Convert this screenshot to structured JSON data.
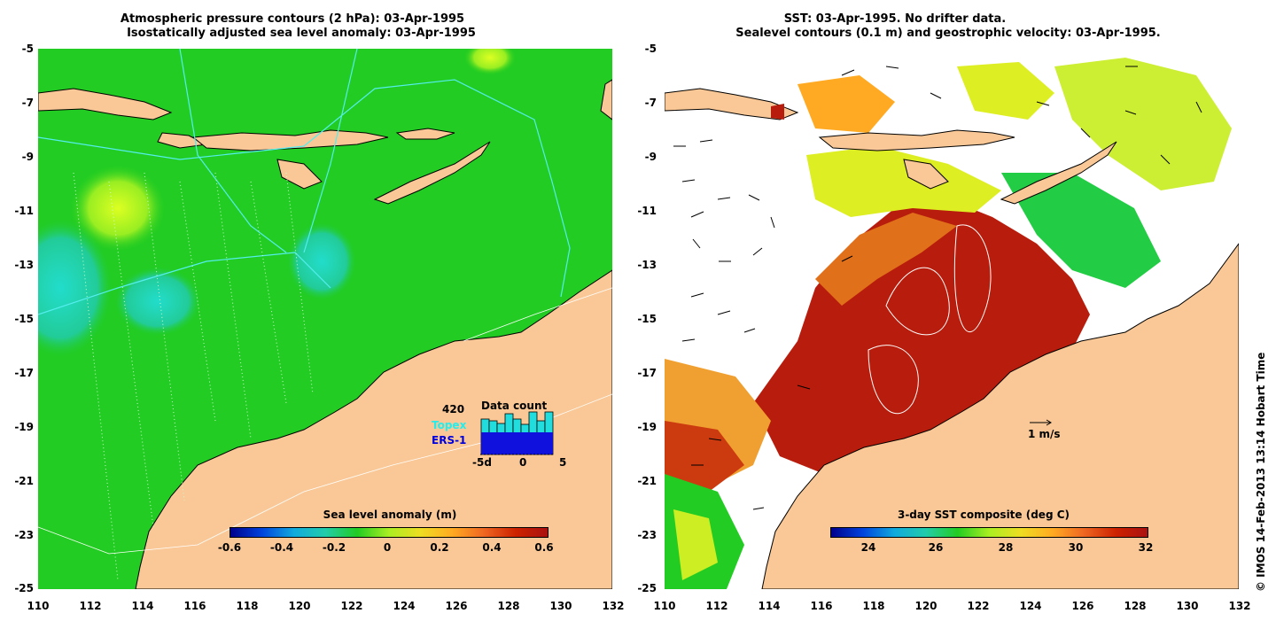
{
  "left": {
    "title_line1": "Atmospheric pressure contours (2 hPa): 03-Apr-1995",
    "title_line2": "Isostatically adjusted sea level anomaly: 03-Apr-1995",
    "colorbar_title": "Sea level anomaly (m)",
    "colorbar_ticks": [
      "-0.6",
      "-0.4",
      "-0.2",
      "0",
      "0.2",
      "0.4",
      "0.6"
    ],
    "inset": {
      "count": "420",
      "title": "Data count",
      "label_topex": "Topex",
      "label_ers": "ERS-1",
      "x_ticks": [
        "-5d",
        "0",
        "5"
      ]
    }
  },
  "right": {
    "title_line1": "SST: 03-Apr-1995. No drifter data.",
    "title_line2": "Sealevel contours (0.1 m) and geostrophic velocity: 03-Apr-1995.",
    "colorbar_title": "3-day SST composite (deg C)",
    "colorbar_ticks": [
      "24",
      "26",
      "28",
      "30",
      "32"
    ],
    "vector_scale": "1 m/s"
  },
  "axes": {
    "y_ticks": [
      "-5",
      "-7",
      "-9",
      "-11",
      "-13",
      "-15",
      "-17",
      "-19",
      "-21",
      "-23",
      "-25"
    ],
    "x_ticks": [
      "110",
      "112",
      "114",
      "116",
      "118",
      "120",
      "122",
      "124",
      "126",
      "128",
      "130",
      "132"
    ]
  },
  "copyright": "© IMOS 14-Feb-2013 13:14 Hobart Time",
  "colors": {
    "land": "#f9c896",
    "ocean_green": "#22cc22",
    "sst_red": "#b81c0c"
  }
}
